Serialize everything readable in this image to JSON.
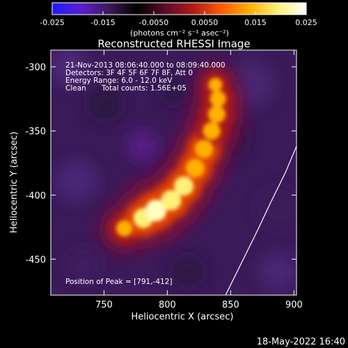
{
  "colors": {
    "background": "#000000",
    "foreground": "#ffffff",
    "colormap": [
      "#1a1aff",
      "#5a1fd0",
      "#3c1a5a",
      "#000000",
      "#5b0b2a",
      "#b01c16",
      "#ff5a00",
      "#ffb000",
      "#fff07a",
      "#ffffff"
    ]
  },
  "colorbar": {
    "ticks": [
      "-0.025",
      "-0.015",
      "-0.0050",
      "0.0050",
      "0.015",
      "0.025"
    ],
    "unit_label": "(photons cm⁻² s⁻¹ asec⁻²)"
  },
  "footer": {
    "timestamp": "18-May-2022 16:40"
  },
  "chart_data": {
    "type": "heatmap",
    "title": "Reconstructed RHESSI Image",
    "xlabel": "Heliocentric X (arcsec)",
    "ylabel": "Heliocentric Y (arcsec)",
    "xlim": [
      708,
      902
    ],
    "ylim": [
      -478,
      -287
    ],
    "x_ticks": [
      "750",
      "800",
      "850",
      "900"
    ],
    "y_ticks": [
      "-300",
      "-350",
      "-400",
      "-450"
    ],
    "colorbar_range": [
      -0.025,
      0.025
    ],
    "annotations": [
      "21-Nov-2013 08:06:40.000 to 08:09:40.000",
      "Detectors: 3F 4F 5F 6F 7F 8F, Att 0",
      "Energy Range: 6.0 - 12.0 keV",
      "Clean",
      "Total counts: 1.56E+05"
    ],
    "peak_label": "Position of Peak = [791,-412]",
    "peak": [
      791,
      -412
    ],
    "emission_ridge": [
      {
        "x": 766,
        "y": -426,
        "level": 0.55
      },
      {
        "x": 781,
        "y": -418,
        "level": 0.85
      },
      {
        "x": 791,
        "y": -412,
        "level": 1.0
      },
      {
        "x": 803,
        "y": -404,
        "level": 0.9
      },
      {
        "x": 813,
        "y": -393,
        "level": 0.82
      },
      {
        "x": 822,
        "y": -379,
        "level": 0.75
      },
      {
        "x": 829,
        "y": -364,
        "level": 0.72
      },
      {
        "x": 835,
        "y": -350,
        "level": 0.68
      },
      {
        "x": 839,
        "y": -337,
        "level": 0.66
      },
      {
        "x": 840,
        "y": -325,
        "level": 0.55
      },
      {
        "x": 838,
        "y": -314,
        "level": 0.35
      }
    ],
    "limb_curve": [
      {
        "x": 902,
        "y": -362
      },
      {
        "x": 893,
        "y": -383
      },
      {
        "x": 882,
        "y": -405
      },
      {
        "x": 871,
        "y": -428
      },
      {
        "x": 860,
        "y": -450
      },
      {
        "x": 849,
        "y": -472
      },
      {
        "x": 846,
        "y": -478
      }
    ]
  }
}
